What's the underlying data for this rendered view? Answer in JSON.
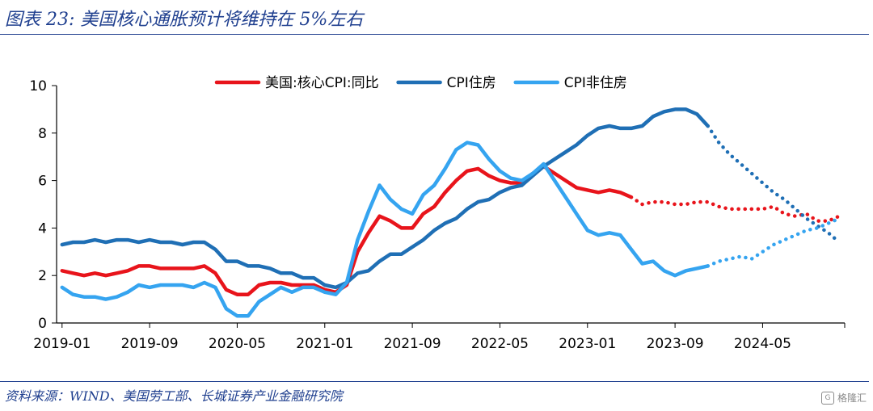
{
  "figure": {
    "title": "图表 23:  美国核心通胀预计将维持在 5%左右",
    "source": "资料来源：WIND、美国劳工部、长城证券产业金融研究院",
    "watermark": "格隆汇",
    "watermark_icon": "gelonghui-logo-icon"
  },
  "chart_data": {
    "type": "line",
    "title": "",
    "xlabel": "",
    "ylabel": "",
    "ylim": [
      0,
      10
    ],
    "yticks": [
      0,
      2,
      4,
      6,
      8,
      10
    ],
    "x_range": [
      "2019-01",
      "2024-12"
    ],
    "xticks": [
      "2019-01",
      "2019-09",
      "2020-05",
      "2021-01",
      "2021-09",
      "2022-05",
      "2023-01",
      "2023-09",
      "2024-05"
    ],
    "grid": false,
    "legend": "top-center",
    "series": [
      {
        "name": "美国:核心CPI:同比",
        "color": "#e8141b",
        "actual": {
          "x": [
            "2019-01",
            "2019-02",
            "2019-03",
            "2019-04",
            "2019-05",
            "2019-06",
            "2019-07",
            "2019-08",
            "2019-09",
            "2019-10",
            "2019-11",
            "2019-12",
            "2020-01",
            "2020-02",
            "2020-03",
            "2020-04",
            "2020-05",
            "2020-06",
            "2020-07",
            "2020-08",
            "2020-09",
            "2020-10",
            "2020-11",
            "2020-12",
            "2021-01",
            "2021-02",
            "2021-03",
            "2021-04",
            "2021-05",
            "2021-06",
            "2021-07",
            "2021-08",
            "2021-09",
            "2021-10",
            "2021-11",
            "2021-12",
            "2022-01",
            "2022-02",
            "2022-03",
            "2022-04",
            "2022-05",
            "2022-06",
            "2022-07",
            "2022-08",
            "2022-09",
            "2022-10",
            "2022-11",
            "2022-12",
            "2023-01",
            "2023-02",
            "2023-03",
            "2023-04",
            "2023-05"
          ],
          "y": [
            2.2,
            2.1,
            2.0,
            2.1,
            2.0,
            2.1,
            2.2,
            2.4,
            2.4,
            2.3,
            2.3,
            2.3,
            2.3,
            2.4,
            2.1,
            1.4,
            1.2,
            1.2,
            1.6,
            1.7,
            1.7,
            1.6,
            1.6,
            1.6,
            1.4,
            1.3,
            1.6,
            3.0,
            3.8,
            4.5,
            4.3,
            4.0,
            4.0,
            4.6,
            4.9,
            5.5,
            6.0,
            6.4,
            6.5,
            6.2,
            6.0,
            5.9,
            5.9,
            6.3,
            6.6,
            6.3,
            6.0,
            5.7,
            5.6,
            5.5,
            5.6,
            5.5,
            5.3
          ]
        },
        "forecast": {
          "x": [
            "2023-05",
            "2023-06",
            "2023-07",
            "2023-08",
            "2023-09",
            "2023-10",
            "2023-11",
            "2023-12",
            "2024-01",
            "2024-02",
            "2024-03",
            "2024-04",
            "2024-05",
            "2024-06",
            "2024-07",
            "2024-08",
            "2024-09",
            "2024-10",
            "2024-11",
            "2024-12"
          ],
          "y": [
            5.3,
            5.0,
            5.1,
            5.1,
            5.0,
            5.0,
            5.1,
            5.1,
            4.9,
            4.8,
            4.8,
            4.8,
            4.8,
            4.9,
            4.6,
            4.5,
            4.6,
            4.3,
            4.3,
            4.5
          ]
        }
      },
      {
        "name": "CPI住房",
        "color": "#1f6fb5",
        "actual": {
          "x": [
            "2019-01",
            "2019-02",
            "2019-03",
            "2019-04",
            "2019-05",
            "2019-06",
            "2019-07",
            "2019-08",
            "2019-09",
            "2019-10",
            "2019-11",
            "2019-12",
            "2020-01",
            "2020-02",
            "2020-03",
            "2020-04",
            "2020-05",
            "2020-06",
            "2020-07",
            "2020-08",
            "2020-09",
            "2020-10",
            "2020-11",
            "2020-12",
            "2021-01",
            "2021-02",
            "2021-03",
            "2021-04",
            "2021-05",
            "2021-06",
            "2021-07",
            "2021-08",
            "2021-09",
            "2021-10",
            "2021-11",
            "2021-12",
            "2022-01",
            "2022-02",
            "2022-03",
            "2022-04",
            "2022-05",
            "2022-06",
            "2022-07",
            "2022-08",
            "2022-09",
            "2022-10",
            "2022-11",
            "2022-12",
            "2023-01",
            "2023-02",
            "2023-03",
            "2023-04",
            "2023-05",
            "2023-06",
            "2023-07",
            "2023-08",
            "2023-09",
            "2023-10",
            "2023-11",
            "2023-12"
          ],
          "y": [
            3.3,
            3.4,
            3.4,
            3.5,
            3.4,
            3.5,
            3.5,
            3.4,
            3.5,
            3.4,
            3.4,
            3.3,
            3.4,
            3.4,
            3.1,
            2.6,
            2.6,
            2.4,
            2.4,
            2.3,
            2.1,
            2.1,
            1.9,
            1.9,
            1.6,
            1.5,
            1.7,
            2.1,
            2.2,
            2.6,
            2.9,
            2.9,
            3.2,
            3.5,
            3.9,
            4.2,
            4.4,
            4.8,
            5.1,
            5.2,
            5.5,
            5.7,
            5.8,
            6.2,
            6.6,
            6.9,
            7.2,
            7.5,
            7.9,
            8.2,
            8.3,
            8.2,
            8.2,
            8.3,
            8.7,
            8.9,
            9.0,
            9.0,
            8.8,
            8.3
          ]
        },
        "forecast": {
          "x": [
            "2023-12",
            "2024-01",
            "2024-02",
            "2024-03",
            "2024-04",
            "2024-05",
            "2024-06",
            "2024-07",
            "2024-08",
            "2024-09",
            "2024-10",
            "2024-11",
            "2024-12"
          ],
          "y": [
            8.3,
            7.6,
            7.1,
            6.7,
            6.3,
            5.9,
            5.5,
            5.2,
            4.8,
            4.4,
            4.1,
            3.8,
            3.4
          ]
        }
      },
      {
        "name": "CPI非住房",
        "color": "#35a4f0",
        "actual": {
          "x": [
            "2019-01",
            "2019-02",
            "2019-03",
            "2019-04",
            "2019-05",
            "2019-06",
            "2019-07",
            "2019-08",
            "2019-09",
            "2019-10",
            "2019-11",
            "2019-12",
            "2020-01",
            "2020-02",
            "2020-03",
            "2020-04",
            "2020-05",
            "2020-06",
            "2020-07",
            "2020-08",
            "2020-09",
            "2020-10",
            "2020-11",
            "2020-12",
            "2021-01",
            "2021-02",
            "2021-03",
            "2021-04",
            "2021-05",
            "2021-06",
            "2021-07",
            "2021-08",
            "2021-09",
            "2021-10",
            "2021-11",
            "2021-12",
            "2022-01",
            "2022-02",
            "2022-03",
            "2022-04",
            "2022-05",
            "2022-06",
            "2022-07",
            "2022-08",
            "2022-09",
            "2022-10",
            "2022-11",
            "2022-12",
            "2023-01",
            "2023-02",
            "2023-03",
            "2023-04",
            "2023-05",
            "2023-06",
            "2023-07",
            "2023-08",
            "2023-09",
            "2023-10",
            "2023-11",
            "2023-12"
          ],
          "y": [
            1.5,
            1.2,
            1.1,
            1.1,
            1.0,
            1.1,
            1.3,
            1.6,
            1.5,
            1.6,
            1.6,
            1.6,
            1.5,
            1.7,
            1.5,
            0.6,
            0.3,
            0.3,
            0.9,
            1.2,
            1.5,
            1.3,
            1.5,
            1.5,
            1.3,
            1.2,
            1.7,
            3.5,
            4.7,
            5.8,
            5.2,
            4.8,
            4.6,
            5.4,
            5.8,
            6.5,
            7.3,
            7.6,
            7.5,
            6.9,
            6.4,
            6.1,
            6.0,
            6.3,
            6.7,
            6.0,
            5.3,
            4.6,
            3.9,
            3.7,
            3.8,
            3.7,
            3.1,
            2.5,
            2.6,
            2.2,
            2.0,
            2.2,
            2.3,
            2.4
          ]
        },
        "forecast": {
          "x": [
            "2023-12",
            "2024-01",
            "2024-02",
            "2024-03",
            "2024-04",
            "2024-05",
            "2024-06",
            "2024-07",
            "2024-08",
            "2024-09",
            "2024-10",
            "2024-11",
            "2024-12"
          ],
          "y": [
            2.4,
            2.6,
            2.7,
            2.8,
            2.7,
            3.0,
            3.3,
            3.5,
            3.7,
            3.9,
            4.0,
            4.2,
            4.4
          ]
        }
      }
    ]
  }
}
